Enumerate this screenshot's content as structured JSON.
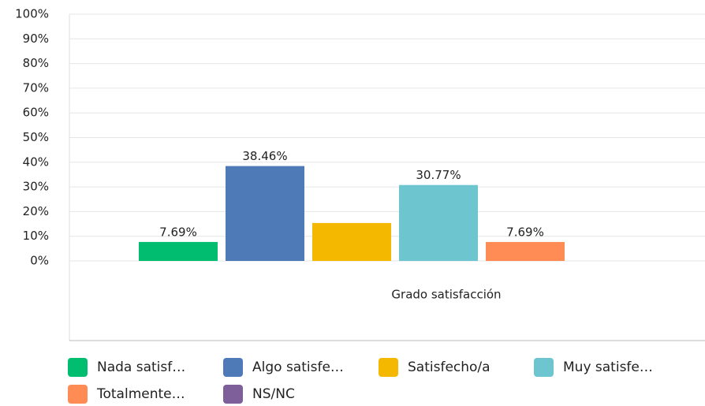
{
  "chart_data": {
    "type": "bar",
    "categories": [
      "Grado satisfacción"
    ],
    "series": [
      {
        "name": "Nada satisf…",
        "color": "#00bd6f",
        "values": [
          7.69
        ],
        "value_labels": [
          "7.69%"
        ]
      },
      {
        "name": "Algo satisfe…",
        "color": "#4e7ab8",
        "values": [
          38.46
        ],
        "value_labels": [
          "38.46%"
        ]
      },
      {
        "name": "Satisfecho/a",
        "color": "#f5b800",
        "values": [
          15.38
        ]
      },
      {
        "name": "Muy satisfe…",
        "color": "#6cc5cf",
        "values": [
          30.77
        ],
        "value_labels": [
          "30.77%"
        ]
      },
      {
        "name": "Totalmente…",
        "color": "#ff8c54",
        "values": [
          7.69
        ],
        "value_labels": [
          "7.69%"
        ]
      },
      {
        "name": "NS/NC",
        "color": "#7f5f9a",
        "values": [
          0
        ]
      }
    ],
    "ylim": [
      0,
      100
    ],
    "yticks": [
      {
        "value": 0,
        "label": "0%"
      },
      {
        "value": 10,
        "label": "10%"
      },
      {
        "value": 20,
        "label": "20%"
      },
      {
        "value": 30,
        "label": "30%"
      },
      {
        "value": 40,
        "label": "40%"
      },
      {
        "value": 50,
        "label": "50%"
      },
      {
        "value": 60,
        "label": "60%"
      },
      {
        "value": 70,
        "label": "70%"
      },
      {
        "value": 80,
        "label": "80%"
      },
      {
        "value": 90,
        "label": "90%"
      },
      {
        "value": 100,
        "label": "100%"
      }
    ],
    "grid": true
  }
}
